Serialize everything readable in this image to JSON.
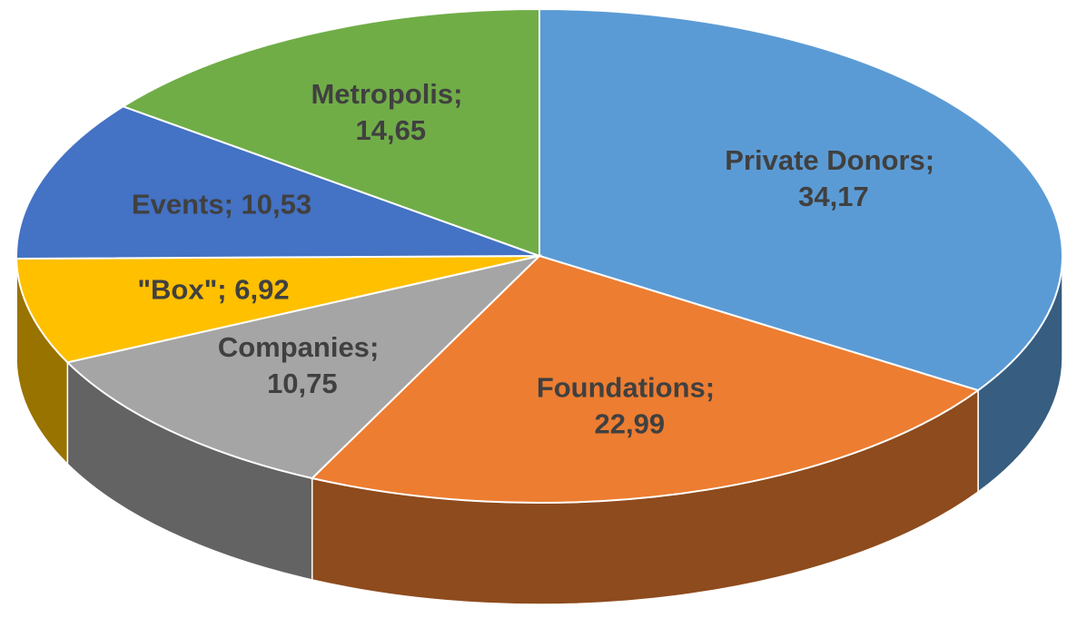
{
  "chart_data": {
    "type": "pie",
    "categories": [
      "Private Donors",
      "Foundations",
      "Companies",
      "\"Box\"",
      "Events",
      "Metropolis"
    ],
    "values": [
      34.17,
      22.99,
      10.75,
      6.92,
      10.53,
      14.65
    ],
    "value_labels": [
      "34,17",
      "22,99",
      "10,75",
      "6,92",
      "10,53",
      "14,65"
    ],
    "label_separator": "; ",
    "colors": [
      "#5b9bd5",
      "#ed7d31",
      "#a5a5a5",
      "#ffc000",
      "#4472c4",
      "#70ad47"
    ]
  }
}
